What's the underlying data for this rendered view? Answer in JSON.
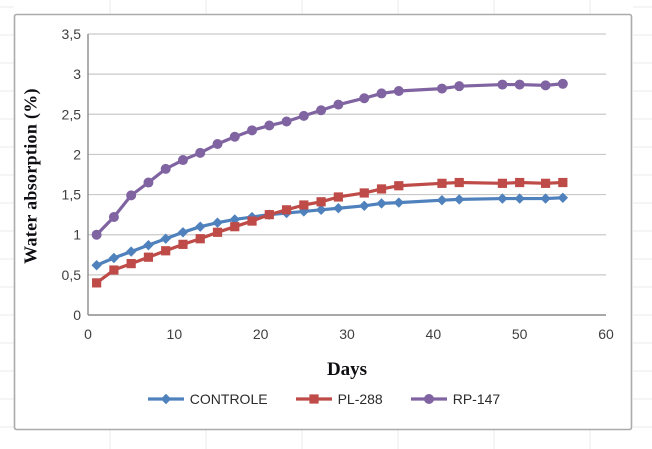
{
  "chart_data": {
    "type": "line",
    "title": "",
    "xlabel": "Days",
    "ylabel": "Water absorption (%)",
    "xlim": [
      0,
      60
    ],
    "ylim": [
      0,
      3.5
    ],
    "grid": "horizontal",
    "legend_position": "bottom",
    "x_ticks": [
      {
        "value": 0,
        "label": "0"
      },
      {
        "value": 10,
        "label": "10"
      },
      {
        "value": 20,
        "label": "20"
      },
      {
        "value": 30,
        "label": "30"
      },
      {
        "value": 40,
        "label": "40"
      },
      {
        "value": 50,
        "label": "50"
      },
      {
        "value": 60,
        "label": "60"
      }
    ],
    "y_ticks": [
      {
        "value": 0,
        "label": "0"
      },
      {
        "value": 0.5,
        "label": "0,5"
      },
      {
        "value": 1,
        "label": "1"
      },
      {
        "value": 1.5,
        "label": "1,5"
      },
      {
        "value": 2,
        "label": "2"
      },
      {
        "value": 2.5,
        "label": "2,5"
      },
      {
        "value": 3,
        "label": "3"
      },
      {
        "value": 3.5,
        "label": "3,5"
      }
    ],
    "x": [
      1,
      3,
      5,
      7,
      9,
      11,
      13,
      15,
      17,
      19,
      21,
      23,
      25,
      27,
      29,
      32,
      34,
      36,
      41,
      43,
      48,
      50,
      53,
      55
    ],
    "series": [
      {
        "name": "CONTROLE",
        "color": "#4F81BD",
        "marker": "diamond",
        "values": [
          0.62,
          0.71,
          0.79,
          0.87,
          0.95,
          1.03,
          1.1,
          1.15,
          1.19,
          1.22,
          1.25,
          1.27,
          1.29,
          1.31,
          1.33,
          1.36,
          1.39,
          1.4,
          1.43,
          1.44,
          1.45,
          1.45,
          1.45,
          1.46
        ]
      },
      {
        "name": "PL-288",
        "color": "#BE4B48",
        "marker": "square",
        "values": [
          0.4,
          0.56,
          0.64,
          0.72,
          0.8,
          0.88,
          0.95,
          1.03,
          1.1,
          1.17,
          1.25,
          1.31,
          1.37,
          1.41,
          1.47,
          1.52,
          1.57,
          1.61,
          1.64,
          1.65,
          1.64,
          1.65,
          1.64,
          1.65
        ]
      },
      {
        "name": "RP-147",
        "color": "#8064A2",
        "marker": "circle",
        "values": [
          1.0,
          1.22,
          1.49,
          1.65,
          1.82,
          1.93,
          2.02,
          2.13,
          2.22,
          2.3,
          2.36,
          2.41,
          2.48,
          2.55,
          2.62,
          2.7,
          2.76,
          2.79,
          2.82,
          2.85,
          2.87,
          2.87,
          2.86,
          2.88
        ]
      }
    ]
  },
  "colors": {
    "gridline": "#C9C9C9",
    "axis_line": "#8C8C8C",
    "chart_border": "#ABABAB",
    "cell_line": "#EBEBEB",
    "tick_label": "#3F3F3F",
    "axis_title": "#0D0D12"
  }
}
